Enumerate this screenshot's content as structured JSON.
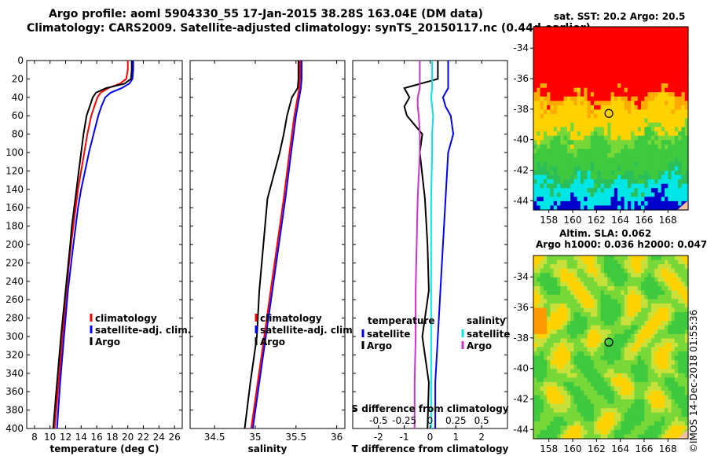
{
  "titles": {
    "line1": "Argo profile: aoml 5904330_55 17-Jan-2015 38.28S 163.04E (DM data)",
    "line2": "Climatology: CARS2009. Satellite-adjusted climatology: synTS_20150117.nc (0.44d earlier)"
  },
  "colors": {
    "climatology": "#ff0000",
    "satellite": "#0000ff",
    "argo": "#000000",
    "sal_satellite": "#00e6e6",
    "sal_argo": "#cc33cc"
  },
  "chart_data": [
    {
      "type": "line",
      "panel": "temperature",
      "xlabel": "temperature (deg C)",
      "ylabel": "",
      "xlim": [
        7,
        27
      ],
      "ylim": [
        400,
        0
      ],
      "xticks": [
        "8",
        "10",
        "12",
        "14",
        "16",
        "18",
        "20",
        "22",
        "24",
        "26"
      ],
      "yticks": [
        "0",
        "20",
        "40",
        "60",
        "80",
        "100",
        "120",
        "140",
        "160",
        "180",
        "200",
        "220",
        "240",
        "260",
        "280",
        "300",
        "320",
        "340",
        "360",
        "380",
        "400"
      ],
      "depth": [
        0,
        10,
        20,
        25,
        30,
        35,
        40,
        50,
        60,
        80,
        100,
        120,
        140,
        160,
        180,
        200,
        250,
        300,
        350,
        400
      ],
      "series": [
        {
          "name": "climatology",
          "values": [
            20.0,
            20.0,
            19.8,
            19.0,
            17.5,
            16.5,
            16.1,
            15.7,
            15.3,
            14.8,
            14.4,
            14.0,
            13.6,
            13.3,
            13.0,
            12.7,
            12.1,
            11.6,
            11.1,
            10.6
          ]
        },
        {
          "name": "satellite-adj. clim.",
          "values": [
            20.7,
            20.7,
            20.6,
            20.2,
            19.2,
            17.8,
            17.1,
            16.6,
            16.2,
            15.6,
            15.0,
            14.5,
            14.0,
            13.6,
            13.3,
            13.0,
            12.3,
            11.8,
            11.3,
            10.9
          ]
        },
        {
          "name": "Argo",
          "values": [
            20.5,
            20.5,
            20.4,
            19.6,
            17.2,
            15.9,
            15.5,
            15.1,
            14.7,
            14.3,
            14.0,
            13.7,
            13.4,
            13.1,
            12.8,
            12.6,
            12.0,
            11.4,
            10.9,
            10.4
          ]
        }
      ],
      "legend": [
        "climatology",
        "satellite-adj. clim.",
        "Argo"
      ]
    },
    {
      "type": "line",
      "panel": "salinity",
      "xlabel": "salinity",
      "ylabel": "",
      "xlim": [
        34.2,
        36.1
      ],
      "ylim": [
        400,
        0
      ],
      "xticks": [
        "34.5",
        "35",
        "35.5",
        "36"
      ],
      "depth": [
        0,
        20,
        30,
        40,
        60,
        80,
        100,
        150,
        200,
        250,
        300,
        350,
        400
      ],
      "series": [
        {
          "name": "climatology",
          "values": [
            35.55,
            35.55,
            35.54,
            35.52,
            35.48,
            35.45,
            35.42,
            35.35,
            35.27,
            35.19,
            35.11,
            35.03,
            34.95
          ]
        },
        {
          "name": "satellite-adj. clim.",
          "values": [
            35.57,
            35.57,
            35.56,
            35.54,
            35.5,
            35.47,
            35.44,
            35.37,
            35.29,
            35.21,
            35.13,
            35.05,
            34.97
          ]
        },
        {
          "name": "Argo",
          "values": [
            35.53,
            35.53,
            35.52,
            35.45,
            35.39,
            35.35,
            35.3,
            35.15,
            35.1,
            35.05,
            35.02,
            34.94,
            34.87
          ]
        }
      ],
      "legend": [
        "climatology",
        "satellite-adj. clim.",
        "Argo"
      ]
    },
    {
      "type": "line",
      "panel": "difference",
      "xlabel": "T difference from climatology",
      "x2label": "S difference from climatology",
      "xlim": [
        -3,
        3
      ],
      "ylim": [
        400,
        0
      ],
      "xticks": [
        "-2",
        "-1",
        "0",
        "1",
        "2"
      ],
      "x2ticks": [
        "-0.5",
        "-0.25",
        "0",
        "0.25",
        "0.5"
      ],
      "depth": [
        0,
        20,
        30,
        40,
        50,
        60,
        80,
        100,
        150,
        200,
        250,
        300,
        350,
        400
      ],
      "series": [
        {
          "name": "temperature satellite",
          "values": [
            0.7,
            0.7,
            0.7,
            0.5,
            0.6,
            0.8,
            0.9,
            0.7,
            0.6,
            0.5,
            0.4,
            0.3,
            0.2,
            0.2
          ]
        },
        {
          "name": "temperature Argo",
          "values": [
            0.3,
            0.3,
            -1.0,
            -0.8,
            -1.0,
            -0.9,
            -0.3,
            -0.4,
            -0.2,
            -0.1,
            -0.05,
            -0.3,
            -0.05,
            -0.1
          ]
        },
        {
          "name": "salinity satellite",
          "values": [
            0.02,
            0.02,
            0.02,
            0.01,
            0.02,
            0.03,
            0.02,
            0.02,
            0.01,
            0.01,
            0.01,
            0.01,
            0.01,
            0.01
          ]
        },
        {
          "name": "salinity Argo",
          "values": [
            -0.1,
            -0.1,
            -0.1,
            -0.12,
            -0.12,
            -0.11,
            -0.1,
            -0.1,
            -0.12,
            -0.13,
            -0.14,
            -0.14,
            -0.15,
            -0.15
          ]
        }
      ],
      "legend_left_title": "temperature",
      "legend_left": [
        "satellite",
        "Argo"
      ],
      "legend_right_title": "salinity",
      "legend_right": [
        "satellite",
        "Argo"
      ]
    },
    {
      "type": "heatmap",
      "panel": "sst-map",
      "title": "sat. SST: 20.2 Argo: 20.5",
      "xticks": [
        "158",
        "160",
        "162",
        "164",
        "166",
        "168"
      ],
      "yticks": [
        "-34",
        "-36",
        "-38",
        "-40",
        "-42",
        "-44"
      ],
      "xlim": [
        156.7,
        169.7
      ],
      "ylim": [
        -44.6,
        -32.6
      ],
      "profile_location": [
        163.04,
        -38.28
      ]
    },
    {
      "type": "heatmap",
      "panel": "sla-map",
      "title": "Altim. SLA: 0.062",
      "subtitle": "Argo h1000: 0.036 h2000: 0.047",
      "xticks": [
        "158",
        "160",
        "162",
        "164",
        "166",
        "168"
      ],
      "yticks": [
        "-34",
        "-36",
        "-38",
        "-40",
        "-42",
        "-44"
      ],
      "xlim": [
        156.7,
        169.7
      ],
      "ylim": [
        -44.6,
        -32.6
      ],
      "profile_location": [
        163.04,
        -38.28
      ]
    }
  ],
  "maps": {
    "sst_title": "sat. SST: 20.2 Argo: 20.5",
    "sla_title1": "Altim. SLA: 0.062",
    "sla_title2": "Argo h1000: 0.036 h2000: 0.047"
  },
  "watermark": "©IMOS 14-Dec-2018 01:55:36"
}
